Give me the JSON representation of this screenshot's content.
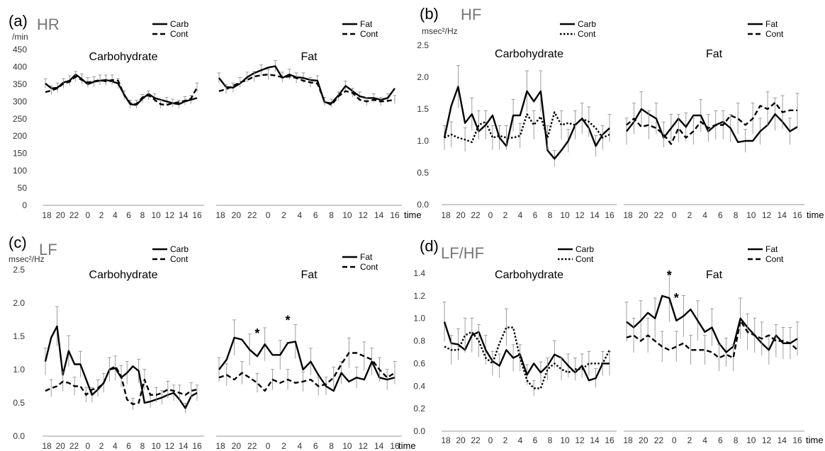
{
  "x_ticks": [
    "18",
    "20",
    "22",
    "0",
    "2",
    "4",
    "6",
    "8",
    "10",
    "12",
    "14",
    "16"
  ],
  "time_label": "time",
  "chart_data": [
    {
      "panel": "(a)",
      "title": "HR",
      "unit": "/min",
      "type": "line",
      "ylim": [
        0,
        450
      ],
      "yticks": [
        "0",
        "50",
        "100",
        "150",
        "200",
        "250",
        "300",
        "350",
        "400",
        "450"
      ],
      "subplots": [
        {
          "name": "Carbohydrate",
          "legend": [
            "Carb",
            "Cont"
          ],
          "series": [
            {
              "name": "Carb",
              "style": "solid",
              "values": [
                352,
                338,
                340,
                355,
                360,
                378,
                365,
                350,
                357,
                360,
                362,
                358,
                352,
                320,
                292,
                290,
                308,
                322,
                310,
                305,
                300,
                295,
                292,
                300,
                305,
                310
              ]
            },
            {
              "name": "Cont",
              "style": "dashed",
              "values": [
                327,
                332,
                338,
                352,
                357,
                372,
                362,
                355,
                358,
                362,
                358,
                362,
                360,
                318,
                295,
                292,
                312,
                318,
                305,
                292,
                290,
                295,
                298,
                302,
                308,
                340
              ]
            }
          ]
        },
        {
          "name": "Fat",
          "legend": [
            "Fat",
            "Cont"
          ],
          "series": [
            {
              "name": "Fat",
              "style": "solid",
              "values": [
                368,
                342,
                340,
                352,
                370,
                382,
                390,
                398,
                402,
                368,
                378,
                370,
                368,
                362,
                360,
                298,
                295,
                318,
                345,
                330,
                315,
                310,
                310,
                305,
                310,
                338
              ]
            },
            {
              "name": "Cont",
              "style": "dashed",
              "values": [
                330,
                335,
                345,
                355,
                362,
                372,
                376,
                378,
                375,
                370,
                372,
                368,
                360,
                355,
                352,
                300,
                290,
                315,
                330,
                325,
                305,
                300,
                305,
                300,
                302,
                305
              ]
            }
          ]
        }
      ]
    },
    {
      "panel": "(b)",
      "title": "HF",
      "unit": "msec²/Hz",
      "type": "line",
      "ylim": [
        0,
        2.5
      ],
      "yticks": [
        "0.0",
        "0.5",
        "1.0",
        "1.5",
        "2.0",
        "2.5"
      ],
      "subplots": [
        {
          "name": "Carbohydrate",
          "legend": [
            "Carb",
            "Cont"
          ],
          "series": [
            {
              "name": "Carb",
              "style": "solid",
              "values": [
                1.05,
                1.55,
                1.85,
                1.28,
                1.42,
                1.15,
                1.25,
                1.4,
                1.05,
                0.92,
                1.4,
                1.4,
                1.78,
                1.62,
                1.78,
                0.85,
                0.72,
                0.85,
                1.0,
                1.25,
                1.35,
                1.2,
                0.92,
                1.1,
                1.2
              ]
            },
            {
              "name": "Cont",
              "style": "dotted",
              "values": [
                1.05,
                1.1,
                1.05,
                1.02,
                0.98,
                1.25,
                1.3,
                1.05,
                1.08,
                1.05,
                1.05,
                1.08,
                1.42,
                1.25,
                1.38,
                1.05,
                1.45,
                1.25,
                1.28,
                1.25,
                1.35,
                1.3,
                1.2,
                1.05,
                1.1
              ]
            }
          ]
        },
        {
          "name": "Fat",
          "legend": [
            "Fat",
            "Cont"
          ],
          "series": [
            {
              "name": "Fat",
              "style": "solid",
              "values": [
                1.15,
                1.3,
                1.5,
                1.42,
                1.35,
                1.05,
                1.2,
                1.35,
                1.22,
                1.4,
                1.4,
                1.15,
                1.25,
                1.3,
                1.2,
                0.98,
                1.0,
                1.0,
                1.15,
                1.25,
                1.42,
                1.3,
                1.15,
                1.22
              ]
            },
            {
              "name": "Cont",
              "style": "dashed",
              "values": [
                1.25,
                1.35,
                1.22,
                1.25,
                1.2,
                1.1,
                0.95,
                1.2,
                1.05,
                1.15,
                1.3,
                1.2,
                1.25,
                1.25,
                1.4,
                1.35,
                1.25,
                1.35,
                1.55,
                1.5,
                1.6,
                1.45,
                1.48,
                1.48
              ]
            }
          ]
        }
      ]
    },
    {
      "panel": "(c)",
      "title": "LF",
      "unit": "msec²/Hz",
      "type": "line",
      "ylim": [
        0,
        2.5
      ],
      "yticks": [
        "0.0",
        "0.5",
        "1.0",
        "1.5",
        "2.0",
        "2.5"
      ],
      "subplots": [
        {
          "name": "Carbohydrate",
          "legend": [
            "Carb",
            "Cont"
          ],
          "series": [
            {
              "name": "Carb",
              "style": "solid",
              "values": [
                1.12,
                1.48,
                1.65,
                0.92,
                1.28,
                1.08,
                1.08,
                0.85,
                0.62,
                0.7,
                0.8,
                1.0,
                1.02,
                0.88,
                0.95,
                1.05,
                0.98,
                0.5,
                0.52,
                0.55,
                0.58,
                0.62,
                0.65,
                0.55,
                0.42,
                0.6,
                0.65
              ]
            },
            {
              "name": "Cont",
              "style": "dashed",
              "values": [
                0.68,
                0.72,
                0.75,
                0.82,
                0.8,
                0.75,
                0.75,
                0.62,
                0.7,
                0.72,
                0.8,
                1.0,
                1.05,
                0.9,
                0.55,
                0.48,
                0.5,
                0.85,
                0.62,
                0.62,
                0.65,
                0.7,
                0.68,
                0.65,
                0.62,
                0.68,
                0.7
              ]
            }
          ]
        },
        {
          "name": "Fat",
          "legend": [
            "Fat",
            "Cont"
          ],
          "annotations": [
            {
              "x": 5,
              "label": "*"
            },
            {
              "x": 9,
              "label": "*"
            }
          ],
          "series": [
            {
              "name": "Fat",
              "style": "solid",
              "values": [
                1.0,
                1.15,
                1.48,
                1.45,
                1.3,
                1.2,
                1.38,
                1.22,
                1.22,
                1.4,
                1.42,
                1.0,
                1.12,
                0.92,
                0.75,
                0.68,
                0.95,
                0.82,
                0.88,
                0.85,
                1.12,
                0.88,
                0.85,
                0.88
              ]
            },
            {
              "name": "Cont",
              "style": "dashed",
              "values": [
                0.88,
                0.92,
                0.85,
                0.95,
                0.88,
                0.8,
                0.68,
                0.85,
                0.8,
                0.85,
                0.8,
                0.82,
                0.85,
                0.75,
                0.78,
                0.88,
                1.08,
                1.25,
                1.25,
                1.2,
                1.15,
                1.0,
                0.88,
                0.95
              ]
            }
          ]
        }
      ]
    },
    {
      "panel": "(d)",
      "title": "LF/HF",
      "unit": "",
      "type": "line",
      "ylim": [
        0,
        1.4
      ],
      "yticks": [
        "0.0",
        "0.2",
        "0.4",
        "0.6",
        "0.8",
        "1.0",
        "1.2",
        "1.4"
      ],
      "subplots": [
        {
          "name": "Carbohydrate",
          "legend": [
            "Carb",
            "Cont"
          ],
          "series": [
            {
              "name": "Carb",
              "style": "solid",
              "values": [
                0.97,
                0.78,
                0.77,
                0.72,
                0.85,
                0.88,
                0.72,
                0.62,
                0.58,
                0.72,
                0.65,
                0.68,
                0.5,
                0.6,
                0.52,
                0.58,
                0.68,
                0.65,
                0.58,
                0.52,
                0.58,
                0.45,
                0.47,
                0.6,
                0.6
              ]
            },
            {
              "name": "Cont",
              "style": "dotted",
              "values": [
                0.75,
                0.72,
                0.72,
                0.85,
                0.88,
                0.8,
                0.65,
                0.6,
                0.78,
                0.92,
                0.92,
                0.65,
                0.45,
                0.38,
                0.38,
                0.55,
                0.6,
                0.55,
                0.52,
                0.55,
                0.55,
                0.6,
                0.6,
                0.6,
                0.72
              ]
            }
          ]
        },
        {
          "name": "Fat",
          "legend": [
            "Fat",
            "Cont"
          ],
          "annotations": [
            {
              "x": 6,
              "label": "*"
            },
            {
              "x": 7,
              "label": "*"
            }
          ],
          "series": [
            {
              "name": "Fat",
              "style": "solid",
              "values": [
                0.97,
                0.92,
                0.98,
                1.05,
                1.0,
                1.2,
                1.18,
                0.98,
                1.02,
                1.08,
                0.98,
                0.88,
                0.92,
                0.78,
                0.7,
                0.75,
                1.0,
                0.92,
                0.85,
                0.78,
                0.72,
                0.85,
                0.78,
                0.78,
                0.82
              ]
            },
            {
              "name": "Cont",
              "style": "dashed",
              "values": [
                0.83,
                0.85,
                0.8,
                0.85,
                0.8,
                0.75,
                0.72,
                0.75,
                0.78,
                0.72,
                0.72,
                0.72,
                0.7,
                0.65,
                0.68,
                0.65,
                0.98,
                0.88,
                0.85,
                0.82,
                0.85,
                0.8,
                0.8,
                0.78,
                0.72
              ]
            }
          ]
        }
      ]
    }
  ]
}
